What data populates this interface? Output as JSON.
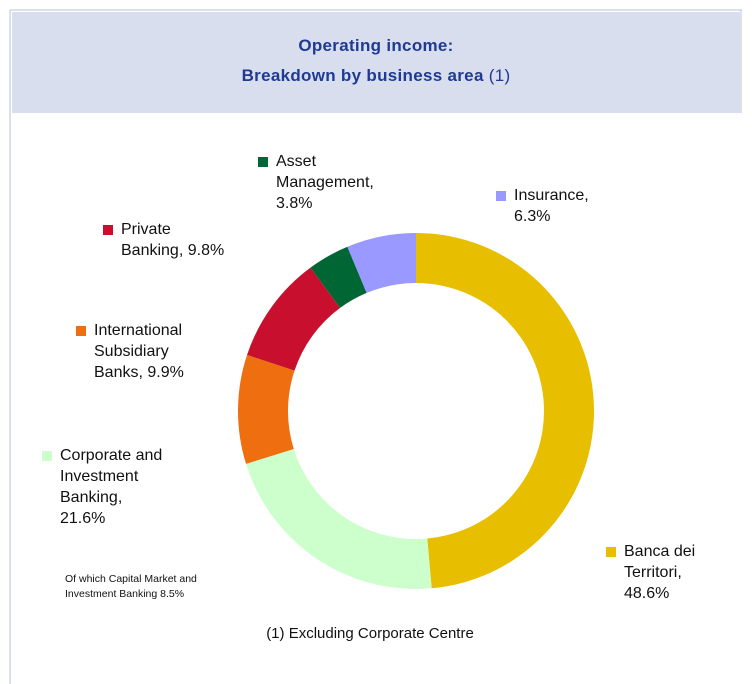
{
  "chart_data": {
    "type": "pie",
    "title": [
      "Operating income:",
      "Breakdown by business area"
    ],
    "title_note": "(1)",
    "categories": [
      "Banca dei Territori,",
      "Corporate and Investment Banking,",
      "International Subsidiary Banks,",
      "Private Banking,",
      "Asset Management,",
      "Insurance,"
    ],
    "values": [
      48.6,
      21.6,
      9.9,
      9.8,
      3.8,
      6.3
    ],
    "value_labels": [
      "48.6%",
      "21.6%",
      "9.9%",
      "9.8%",
      "3.8%",
      "6.3%"
    ],
    "colors": [
      "#e8be00",
      "#ccffcc",
      "#ee6e10",
      "#c8102e",
      "#006633",
      "#9999ff"
    ],
    "donut": true,
    "annotation": "Of which Capital Market and Investment Banking 8.5%",
    "footnote": "(1) Excluding Corporate Centre"
  }
}
